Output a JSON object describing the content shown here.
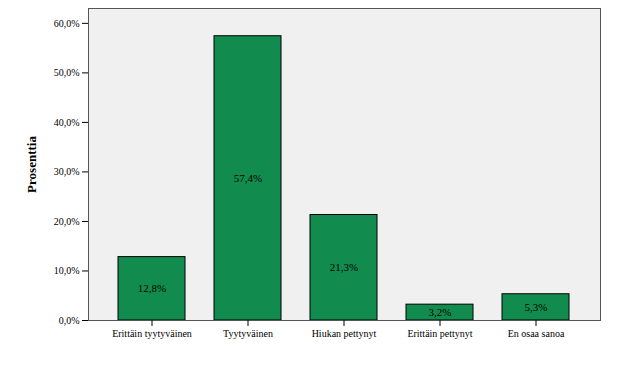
{
  "chart_data": {
    "type": "bar",
    "ylabel": "Prosenttia",
    "categories": [
      "Erittäin tyytyväinen",
      "Tyytyväinen",
      "Hiukan pettynyt",
      "Erittäin pettynyt",
      "En osaa sanoa"
    ],
    "values": [
      12.8,
      57.4,
      21.3,
      3.2,
      5.3
    ],
    "value_labels": [
      "12,8%",
      "57,4%",
      "21,3%",
      "3,2%",
      "5,3%"
    ],
    "color": "#118c4e",
    "ylim": [
      0,
      63
    ],
    "yticks": [
      {
        "value": 0,
        "label": "0,0%"
      },
      {
        "value": 10,
        "label": "10,0%"
      },
      {
        "value": 20,
        "label": "20,0%"
      },
      {
        "value": 30,
        "label": "30,0%"
      },
      {
        "value": 40,
        "label": "40,0%"
      },
      {
        "value": 50,
        "label": "50,0%"
      },
      {
        "value": 60,
        "label": "60,0%"
      }
    ],
    "grid": false,
    "data_labels": true
  }
}
